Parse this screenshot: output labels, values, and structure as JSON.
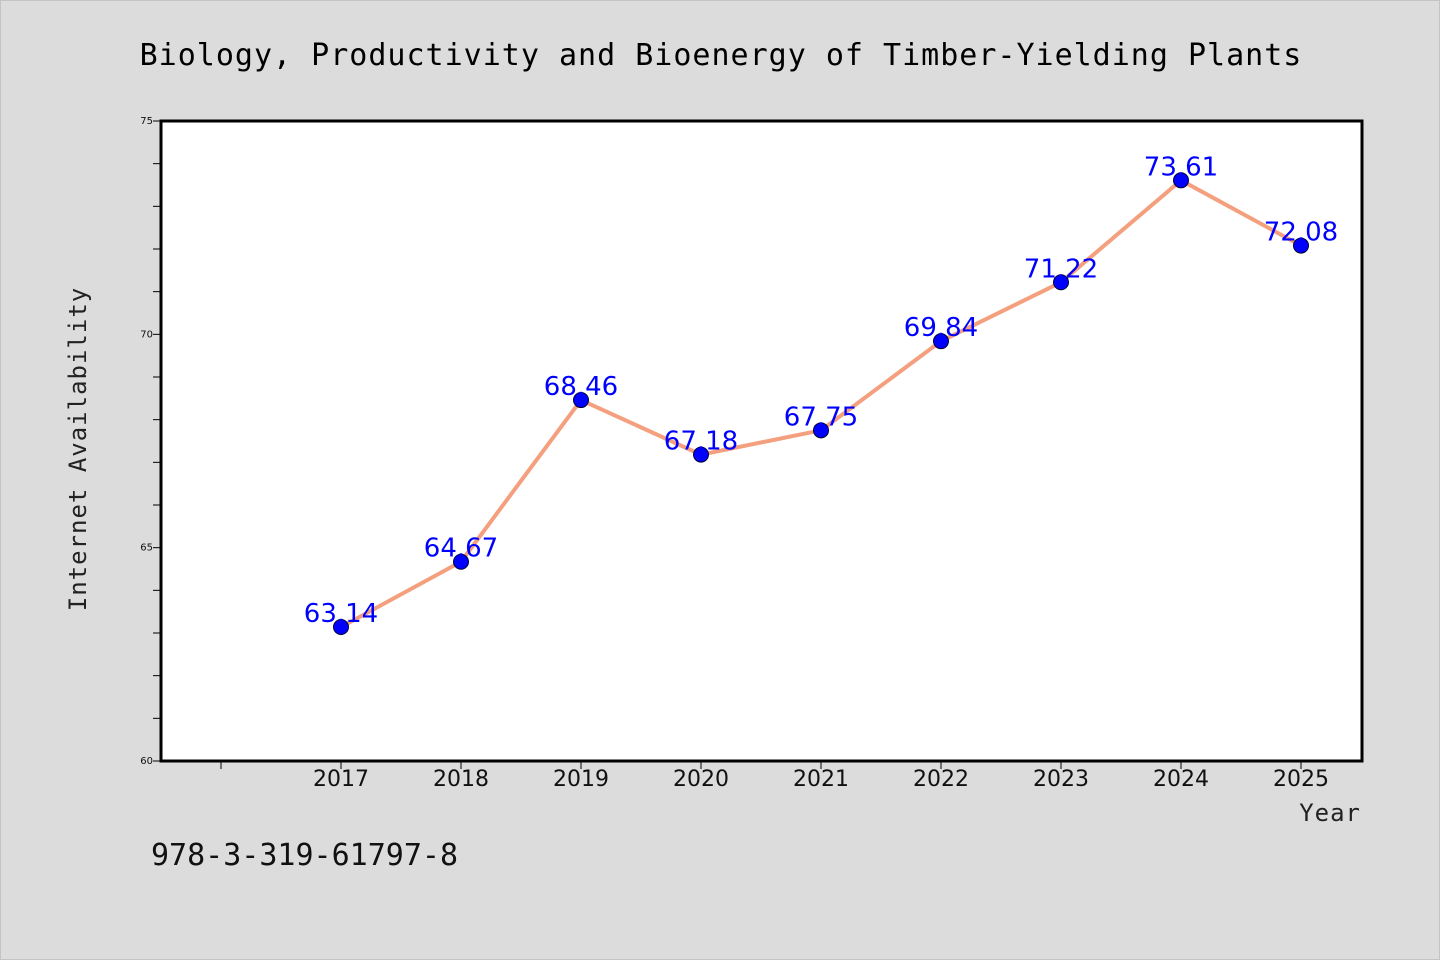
{
  "chart_data": {
    "type": "line",
    "title": "Biology, Productivity and Bioenergy of Timber-Yielding Plants",
    "xlabel": "Year",
    "ylabel": "Internet Availability",
    "categories": [
      "2017",
      "2018",
      "2019",
      "2020",
      "2021",
      "2022",
      "2023",
      "2024",
      "2025"
    ],
    "series": [
      {
        "values": [
          63.14,
          64.67,
          68.46,
          67.18,
          67.75,
          69.84,
          71.22,
          73.61,
          72.08
        ],
        "labels": [
          "63.14",
          "64.67",
          "68.46",
          "67.18",
          "67.75",
          "69.84",
          "71.22",
          "73.61",
          "72.08"
        ],
        "line_color": "#f4a07f",
        "marker_color": "#0000ff"
      }
    ],
    "ylim": [
      60,
      75
    ],
    "y_ticks": [
      "60",
      "65",
      "70",
      "75"
    ],
    "y_minor_step": 1,
    "grid": false,
    "legend": "none",
    "data_label_color": "#0000ff"
  },
  "footer": {
    "isbn": "978-3-319-61797-8"
  }
}
